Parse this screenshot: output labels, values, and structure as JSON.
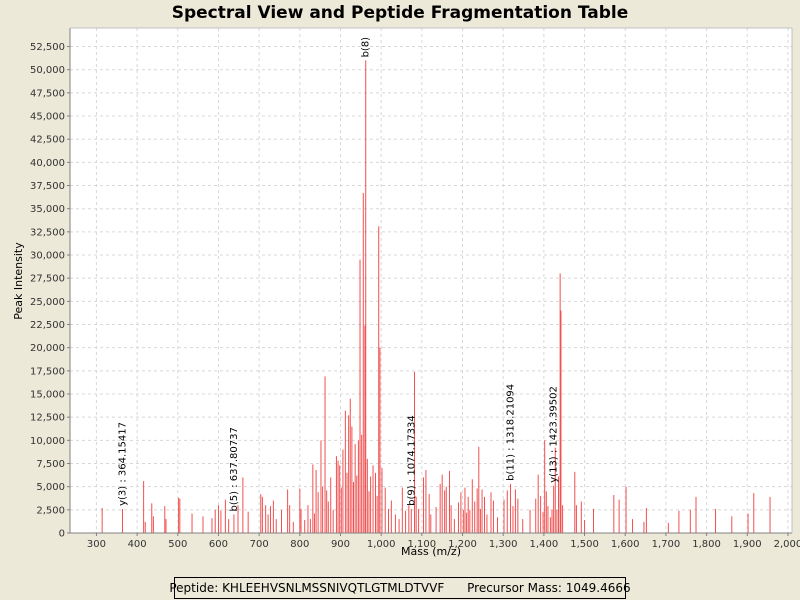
{
  "chart_data": {
    "type": "bar",
    "title": "Spectral View and Peptide Fragmentation Table",
    "xlabel": "Mass (m/z)",
    "ylabel": "Peak Intensity",
    "xlim": [
      235,
      2010
    ],
    "ylim": [
      0,
      54500
    ],
    "grid": true,
    "series_color": "#f05050",
    "x_ticks": [
      300,
      400,
      500,
      600,
      700,
      800,
      900,
      1000,
      1100,
      1200,
      1300,
      1400,
      1500,
      1600,
      1700,
      1800,
      1900,
      2000
    ],
    "x_tick_labels": [
      "300",
      "400",
      "500",
      "600",
      "700",
      "800",
      "900",
      "1,000",
      "1,100",
      "1,200",
      "1,300",
      "1,400",
      "1,500",
      "1,600",
      "1,700",
      "1,800",
      "1,900",
      "2,000"
    ],
    "y_ticks": [
      0,
      2500,
      5000,
      7500,
      10000,
      12500,
      15000,
      17500,
      20000,
      22500,
      25000,
      27500,
      30000,
      32500,
      35000,
      37500,
      40000,
      42500,
      45000,
      47500,
      50000,
      52500
    ],
    "y_tick_labels": [
      "0",
      "2,500",
      "5,000",
      "7,500",
      "10,000",
      "12,500",
      "15,000",
      "17,500",
      "20,000",
      "22,500",
      "25,000",
      "27,500",
      "30,000",
      "32,500",
      "35,000",
      "37,500",
      "40,000",
      "42,500",
      "45,000",
      "47,500",
      "50,000",
      "52,500"
    ],
    "peaks": [
      {
        "mz": 314,
        "intensity": 2700
      },
      {
        "mz": 364,
        "intensity": 2600
      },
      {
        "mz": 416,
        "intensity": 5600
      },
      {
        "mz": 420,
        "intensity": 1200
      },
      {
        "mz": 436,
        "intensity": 3200
      },
      {
        "mz": 440,
        "intensity": 1800
      },
      {
        "mz": 468,
        "intensity": 2900
      },
      {
        "mz": 471,
        "intensity": 1500
      },
      {
        "mz": 502,
        "intensity": 3800
      },
      {
        "mz": 505,
        "intensity": 3700
      },
      {
        "mz": 535,
        "intensity": 2100
      },
      {
        "mz": 562,
        "intensity": 1800
      },
      {
        "mz": 584,
        "intensity": 1600
      },
      {
        "mz": 592,
        "intensity": 2500
      },
      {
        "mz": 600,
        "intensity": 3000
      },
      {
        "mz": 606,
        "intensity": 2400
      },
      {
        "mz": 617,
        "intensity": 3600
      },
      {
        "mz": 625,
        "intensity": 1500
      },
      {
        "mz": 638,
        "intensity": 2000
      },
      {
        "mz": 648,
        "intensity": 3000
      },
      {
        "mz": 660,
        "intensity": 6000
      },
      {
        "mz": 673,
        "intensity": 2300
      },
      {
        "mz": 704,
        "intensity": 4200
      },
      {
        "mz": 708,
        "intensity": 3900
      },
      {
        "mz": 716,
        "intensity": 3000
      },
      {
        "mz": 722,
        "intensity": 2000
      },
      {
        "mz": 728,
        "intensity": 2900
      },
      {
        "mz": 735,
        "intensity": 3500
      },
      {
        "mz": 742,
        "intensity": 1500
      },
      {
        "mz": 755,
        "intensity": 2500
      },
      {
        "mz": 770,
        "intensity": 4700
      },
      {
        "mz": 775,
        "intensity": 3000
      },
      {
        "mz": 784,
        "intensity": 1200
      },
      {
        "mz": 800,
        "intensity": 4800
      },
      {
        "mz": 803,
        "intensity": 2600
      },
      {
        "mz": 812,
        "intensity": 1400
      },
      {
        "mz": 820,
        "intensity": 3000
      },
      {
        "mz": 826,
        "intensity": 1500
      },
      {
        "mz": 832,
        "intensity": 7400
      },
      {
        "mz": 836,
        "intensity": 2100
      },
      {
        "mz": 840,
        "intensity": 6800
      },
      {
        "mz": 845,
        "intensity": 4400
      },
      {
        "mz": 852,
        "intensity": 10000
      },
      {
        "mz": 856,
        "intensity": 5000
      },
      {
        "mz": 862,
        "intensity": 16900
      },
      {
        "mz": 866,
        "intensity": 4600
      },
      {
        "mz": 870,
        "intensity": 3400
      },
      {
        "mz": 876,
        "intensity": 6000
      },
      {
        "mz": 882,
        "intensity": 2500
      },
      {
        "mz": 890,
        "intensity": 8300
      },
      {
        "mz": 894,
        "intensity": 7800
      },
      {
        "mz": 898,
        "intensity": 7300
      },
      {
        "mz": 902,
        "intensity": 4900
      },
      {
        "mz": 906,
        "intensity": 9000
      },
      {
        "mz": 912,
        "intensity": 13200
      },
      {
        "mz": 916,
        "intensity": 6500
      },
      {
        "mz": 920,
        "intensity": 12700
      },
      {
        "mz": 924,
        "intensity": 14500
      },
      {
        "mz": 928,
        "intensity": 11500
      },
      {
        "mz": 932,
        "intensity": 5500
      },
      {
        "mz": 936,
        "intensity": 9600
      },
      {
        "mz": 940,
        "intensity": 6200
      },
      {
        "mz": 944,
        "intensity": 10000
      },
      {
        "mz": 948,
        "intensity": 29500
      },
      {
        "mz": 952,
        "intensity": 10600
      },
      {
        "mz": 956,
        "intensity": 36700
      },
      {
        "mz": 960,
        "intensity": 22400
      },
      {
        "mz": 962,
        "intensity": 51000
      },
      {
        "mz": 966,
        "intensity": 8000
      },
      {
        "mz": 970,
        "intensity": 4500
      },
      {
        "mz": 974,
        "intensity": 6100
      },
      {
        "mz": 980,
        "intensity": 7300
      },
      {
        "mz": 986,
        "intensity": 6500
      },
      {
        "mz": 990,
        "intensity": 4000
      },
      {
        "mz": 994,
        "intensity": 33100
      },
      {
        "mz": 997,
        "intensity": 20000
      },
      {
        "mz": 1002,
        "intensity": 7000
      },
      {
        "mz": 1010,
        "intensity": 4900
      },
      {
        "mz": 1018,
        "intensity": 2600
      },
      {
        "mz": 1025,
        "intensity": 3500
      },
      {
        "mz": 1035,
        "intensity": 2000
      },
      {
        "mz": 1044,
        "intensity": 1500
      },
      {
        "mz": 1052,
        "intensity": 4900
      },
      {
        "mz": 1060,
        "intensity": 2400
      },
      {
        "mz": 1068,
        "intensity": 3000
      },
      {
        "mz": 1074,
        "intensity": 2600
      },
      {
        "mz": 1082,
        "intensity": 17400
      },
      {
        "mz": 1086,
        "intensity": 3900
      },
      {
        "mz": 1092,
        "intensity": 2600
      },
      {
        "mz": 1104,
        "intensity": 6000
      },
      {
        "mz": 1110,
        "intensity": 6800
      },
      {
        "mz": 1118,
        "intensity": 4200
      },
      {
        "mz": 1122,
        "intensity": 2000
      },
      {
        "mz": 1135,
        "intensity": 2800
      },
      {
        "mz": 1145,
        "intensity": 5300
      },
      {
        "mz": 1150,
        "intensity": 6300
      },
      {
        "mz": 1156,
        "intensity": 4600
      },
      {
        "mz": 1160,
        "intensity": 5000
      },
      {
        "mz": 1168,
        "intensity": 6700
      },
      {
        "mz": 1172,
        "intensity": 3000
      },
      {
        "mz": 1180,
        "intensity": 1500
      },
      {
        "mz": 1190,
        "intensity": 3300
      },
      {
        "mz": 1196,
        "intensity": 4400
      },
      {
        "mz": 1202,
        "intensity": 2500
      },
      {
        "mz": 1206,
        "intensity": 4900
      },
      {
        "mz": 1210,
        "intensity": 2200
      },
      {
        "mz": 1214,
        "intensity": 3900
      },
      {
        "mz": 1218,
        "intensity": 2500
      },
      {
        "mz": 1224,
        "intensity": 5800
      },
      {
        "mz": 1230,
        "intensity": 3400
      },
      {
        "mz": 1236,
        "intensity": 4800
      },
      {
        "mz": 1240,
        "intensity": 9300
      },
      {
        "mz": 1244,
        "intensity": 2600
      },
      {
        "mz": 1248,
        "intensity": 4700
      },
      {
        "mz": 1254,
        "intensity": 3900
      },
      {
        "mz": 1260,
        "intensity": 2000
      },
      {
        "mz": 1270,
        "intensity": 4400
      },
      {
        "mz": 1276,
        "intensity": 3500
      },
      {
        "mz": 1286,
        "intensity": 1700
      },
      {
        "mz": 1302,
        "intensity": 3600
      },
      {
        "mz": 1310,
        "intensity": 4600
      },
      {
        "mz": 1318,
        "intensity": 5300
      },
      {
        "mz": 1324,
        "intensity": 2900
      },
      {
        "mz": 1330,
        "intensity": 4700
      },
      {
        "mz": 1336,
        "intensity": 3700
      },
      {
        "mz": 1348,
        "intensity": 1500
      },
      {
        "mz": 1366,
        "intensity": 2500
      },
      {
        "mz": 1380,
        "intensity": 3700
      },
      {
        "mz": 1386,
        "intensity": 6300
      },
      {
        "mz": 1392,
        "intensity": 4000
      },
      {
        "mz": 1398,
        "intensity": 2300
      },
      {
        "mz": 1402,
        "intensity": 10000
      },
      {
        "mz": 1406,
        "intensity": 4500
      },
      {
        "mz": 1410,
        "intensity": 2900
      },
      {
        "mz": 1416,
        "intensity": 1700
      },
      {
        "mz": 1420,
        "intensity": 2500
      },
      {
        "mz": 1424,
        "intensity": 5100
      },
      {
        "mz": 1428,
        "intensity": 9200
      },
      {
        "mz": 1432,
        "intensity": 2500
      },
      {
        "mz": 1436,
        "intensity": 6100
      },
      {
        "mz": 1440,
        "intensity": 28000
      },
      {
        "mz": 1442,
        "intensity": 24000
      },
      {
        "mz": 1446,
        "intensity": 3000
      },
      {
        "mz": 1476,
        "intensity": 6600
      },
      {
        "mz": 1480,
        "intensity": 3000
      },
      {
        "mz": 1492,
        "intensity": 3400
      },
      {
        "mz": 1500,
        "intensity": 1400
      },
      {
        "mz": 1522,
        "intensity": 2600
      },
      {
        "mz": 1572,
        "intensity": 4100
      },
      {
        "mz": 1585,
        "intensity": 3600
      },
      {
        "mz": 1602,
        "intensity": 5000
      },
      {
        "mz": 1618,
        "intensity": 1500
      },
      {
        "mz": 1646,
        "intensity": 1200
      },
      {
        "mz": 1652,
        "intensity": 2700
      },
      {
        "mz": 1706,
        "intensity": 1100
      },
      {
        "mz": 1732,
        "intensity": 2400
      },
      {
        "mz": 1760,
        "intensity": 2500
      },
      {
        "mz": 1774,
        "intensity": 3900
      },
      {
        "mz": 1822,
        "intensity": 2600
      },
      {
        "mz": 1862,
        "intensity": 1800
      },
      {
        "mz": 1902,
        "intensity": 2100
      },
      {
        "mz": 1916,
        "intensity": 4300
      },
      {
        "mz": 1956,
        "intensity": 3900
      }
    ],
    "annotations": [
      {
        "mz": 364,
        "intensity": 2600,
        "label": "y(3) : 364.15417"
      },
      {
        "mz": 638,
        "intensity": 2000,
        "label": "b(5) : 637.80737"
      },
      {
        "mz": 962,
        "intensity": 51000,
        "label": "b(8)"
      },
      {
        "mz": 1074,
        "intensity": 2600,
        "label": "b(9) : 1074.17334"
      },
      {
        "mz": 1318,
        "intensity": 5300,
        "label": "b(11) : 1318.21094"
      },
      {
        "mz": 1424,
        "intensity": 5100,
        "label": "y(13) : 1423.39502"
      }
    ]
  },
  "footer": {
    "peptide_text": "Peptide: KHLEEHVSNLMSSNIVQTLGTMLDTVVF",
    "precursor_text": "Precursor Mass: 1049.4666"
  }
}
